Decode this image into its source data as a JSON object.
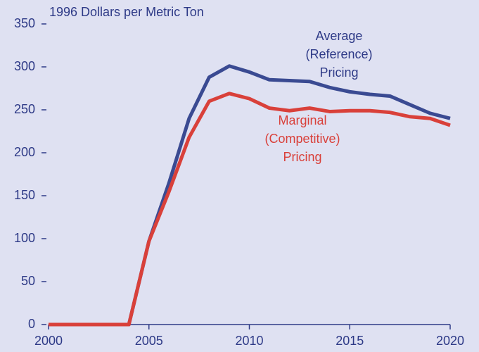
{
  "chart_data": {
    "type": "line",
    "y_label": "1996 Dollars per Metric Ton",
    "x": [
      2000,
      2001,
      2002,
      2003,
      2004,
      2005,
      2006,
      2007,
      2008,
      2009,
      2010,
      2011,
      2012,
      2013,
      2014,
      2015,
      2016,
      2017,
      2018,
      2019,
      2020
    ],
    "series": [
      {
        "name": "Average (Reference) Pricing",
        "color": "#3a4a92",
        "values": [
          0,
          0,
          0,
          0,
          0,
          97,
          165,
          240,
          288,
          301,
          294,
          285,
          284,
          283,
          276,
          271,
          268,
          266,
          256,
          246,
          240
        ]
      },
      {
        "name": "Marginal (Competitive) Pricing",
        "color": "#d9403a",
        "values": [
          0,
          0,
          0,
          0,
          0,
          97,
          155,
          218,
          260,
          269,
          263,
          252,
          249,
          252,
          248,
          249,
          249,
          247,
          242,
          240,
          232
        ]
      }
    ],
    "annotations": [
      {
        "lines": [
          "Average",
          "(Reference)",
          "Pricing"
        ],
        "color": "#2e3a87"
      },
      {
        "lines": [
          "Marginal",
          "(Competitive)",
          "Pricing"
        ],
        "color": "#d9403a"
      }
    ],
    "xlim": [
      2000,
      2020
    ],
    "xticks": [
      2000,
      2005,
      2010,
      2015,
      2020
    ],
    "ylim": [
      0,
      350
    ],
    "yticks": [
      0,
      50,
      100,
      150,
      200,
      250,
      300,
      350
    ],
    "axis_color": "#2e3a87",
    "background": "#dfe1f2"
  }
}
